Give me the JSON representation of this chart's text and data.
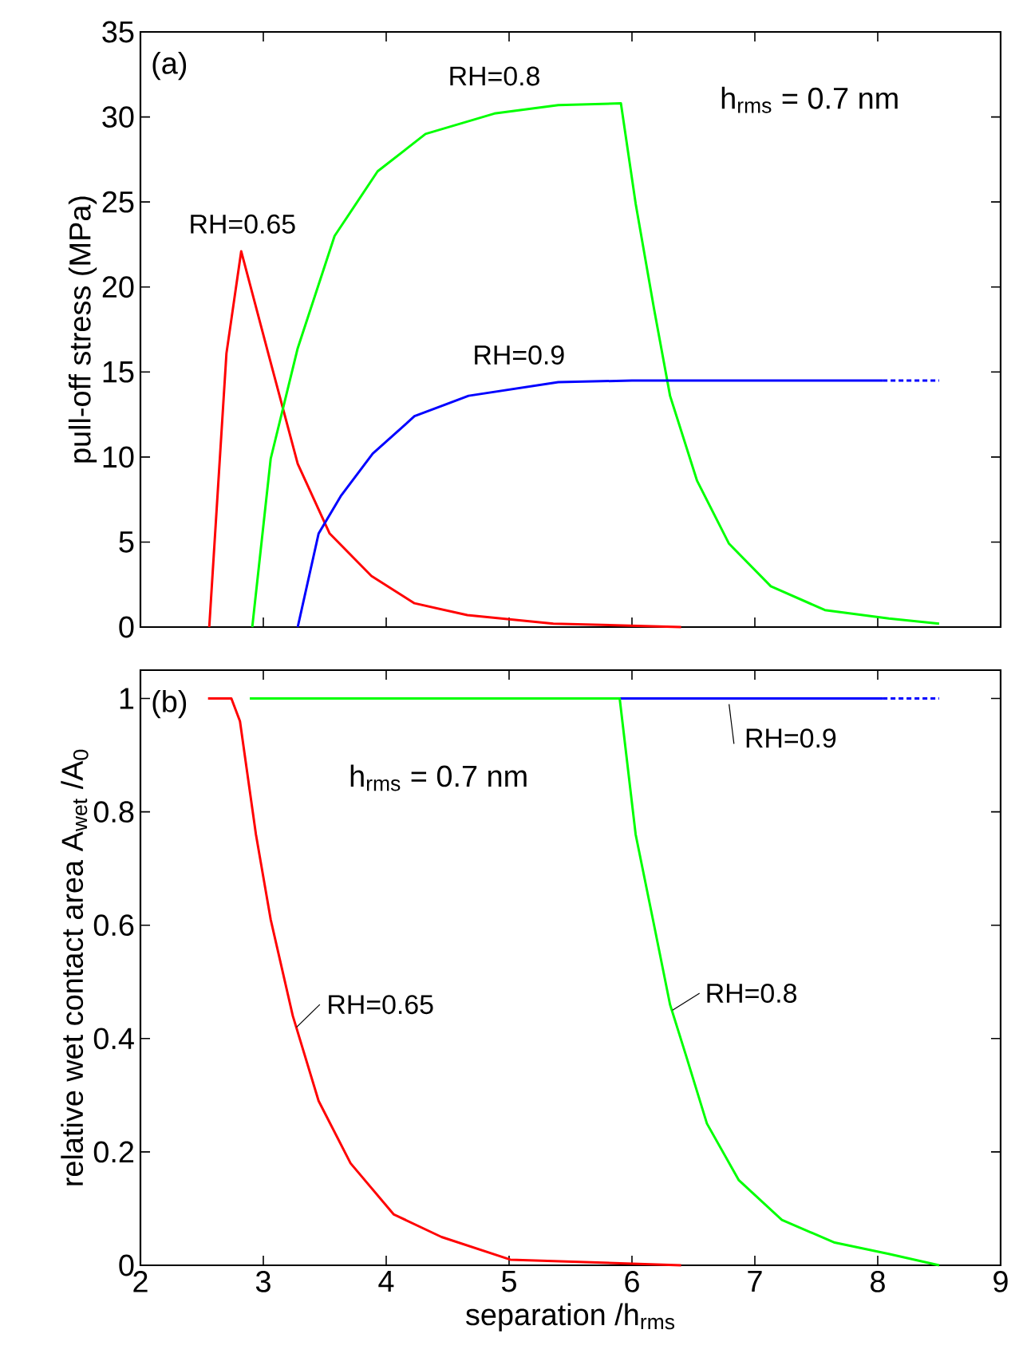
{
  "chart_data": [
    {
      "type": "line",
      "ylabel": "pull-off stress  (MPa)",
      "xlim": [
        2,
        9
      ],
      "xticks": [
        2,
        3,
        4,
        5,
        6,
        7,
        8,
        9
      ],
      "ylim": [
        0,
        35
      ],
      "yticks": [
        0,
        5,
        10,
        15,
        20,
        25,
        30,
        35
      ],
      "tick_labels": "y",
      "annotations": [
        "(a)",
        "h$_{rms}$ = 0.7 nm"
      ],
      "series": [
        {
          "name": "RH=0.65",
          "color": "#ff0000",
          "x": [
            2.56,
            2.7,
            2.82,
            3.04,
            3.28,
            3.54,
            3.88,
            4.23,
            4.66,
            5.36,
            6.4
          ],
          "values": [
            0,
            16.1,
            22.1,
            16.1,
            9.6,
            5.5,
            3.0,
            1.4,
            0.7,
            0.2,
            0
          ]
        },
        {
          "name": "RH=0.8",
          "color": "#00ff00",
          "x": [
            2.91,
            3.06,
            3.28,
            3.58,
            3.93,
            4.32,
            4.88,
            5.4,
            5.91,
            6.03,
            6.18,
            6.31,
            6.53,
            6.79,
            7.13,
            7.57,
            8.09,
            8.5
          ],
          "values": [
            0,
            9.9,
            16.4,
            23.0,
            26.8,
            29.0,
            30.2,
            30.7,
            30.8,
            24.9,
            18.7,
            13.6,
            8.6,
            4.9,
            2.4,
            1.0,
            0.5,
            0.2
          ]
        },
        {
          "name": "RH=0.9",
          "color": "#0000ff",
          "x": [
            3.28,
            3.45,
            3.63,
            3.89,
            4.23,
            4.67,
            5.4,
            6.0,
            8.04
          ],
          "values": [
            0,
            5.5,
            7.7,
            10.2,
            12.4,
            13.6,
            14.4,
            14.5,
            14.5
          ]
        },
        {
          "color": "#0000ff",
          "line_style": "dotted",
          "x": [
            8.04,
            8.5
          ],
          "values": [
            14.5,
            14.5
          ]
        }
      ]
    },
    {
      "type": "line",
      "xlabel": "separation /h$_{rms}$",
      "ylabel": "relative wet contact area  A$_{wet}$ /A$_{0}$",
      "xlim": [
        2,
        9
      ],
      "xticks": [
        2,
        3,
        4,
        5,
        6,
        7,
        8,
        9
      ],
      "ylim": [
        0,
        1.05
      ],
      "yticks": [
        0,
        0.2,
        0.4,
        0.6,
        0.8,
        1
      ],
      "annotations": [
        "(b)",
        "h$_{rms}$ = 0.7 nm"
      ],
      "series": [
        {
          "name": "RH=0.65",
          "color": "#ff0000",
          "x": [
            2.55,
            2.74,
            2.81,
            2.94,
            3.06,
            3.24,
            3.45,
            3.71,
            4.06,
            4.45,
            5.01,
            6.4
          ],
          "values": [
            1,
            1,
            0.96,
            0.76,
            0.61,
            0.44,
            0.29,
            0.18,
            0.09,
            0.05,
            0.01,
            0
          ]
        },
        {
          "name": "RH=0.9",
          "color": "#0000ff",
          "x": [
            5.9,
            8.04
          ],
          "values": [
            1,
            1
          ]
        },
        {
          "color": "#0000ff",
          "line_style": "dotted",
          "x": [
            8.04,
            8.5
          ],
          "values": [
            1,
            1
          ]
        },
        {
          "name": "RH=0.8",
          "color": "#00ff00",
          "x": [
            2.89,
            5.9,
            6.03,
            6.18,
            6.31,
            6.44,
            6.61,
            6.87,
            7.22,
            7.65,
            8.09,
            8.5
          ],
          "values": [
            1,
            1,
            0.76,
            0.6,
            0.46,
            0.37,
            0.25,
            0.15,
            0.08,
            0.04,
            0.02,
            0
          ]
        }
      ]
    }
  ]
}
